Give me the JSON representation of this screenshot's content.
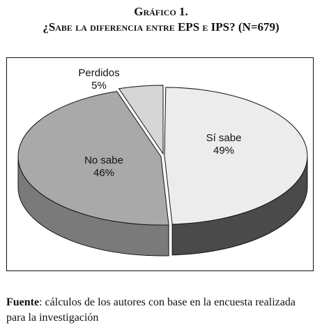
{
  "header": {
    "figure_number": "Gráfico 1.",
    "question_main": "¿Sabe la diferencia entre",
    "question_eps": "EPS",
    "question_e": "e",
    "question_ips": "IPS? (N=679)"
  },
  "chart_data": {
    "type": "pie",
    "title": "¿Sabe la diferencia entre EPS e IPS? (N=679)",
    "style": "3d-exploded-perspective",
    "slices": [
      {
        "label": "Sí sabe",
        "value": 49,
        "value_label": "49%",
        "color": "#ececec",
        "side_color": "#4a4a4a"
      },
      {
        "label": "No sabe",
        "value": 46,
        "value_label": "46%",
        "color": "#a9a9a9",
        "side_color": "#7a7a7a"
      },
      {
        "label": "Perdidos",
        "value": 5,
        "value_label": "5%",
        "color": "#d6d6d6",
        "side_color": "#9a9a9a"
      }
    ]
  },
  "source": {
    "label": "Fuente",
    "text": ": cálculos de los autores con base en la encuesta realizada para la investigación"
  }
}
